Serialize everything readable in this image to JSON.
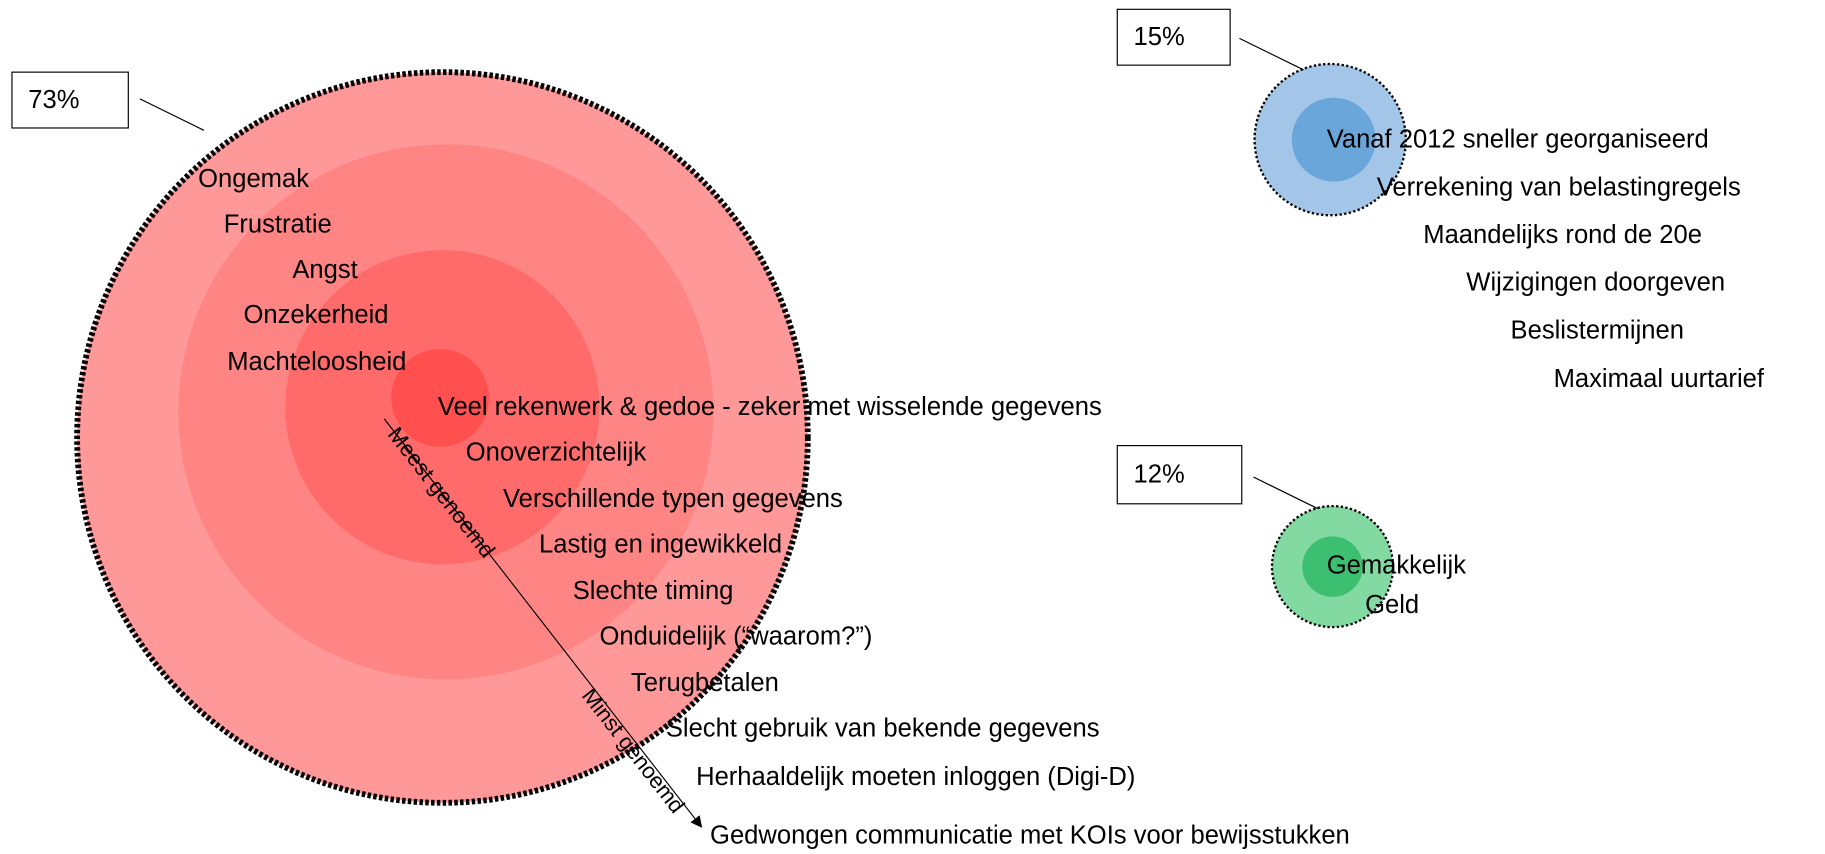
{
  "groups": [
    {
      "label": "73%",
      "items": [
        "Ongemak",
        "Frustratie",
        "Angst",
        "Onzekerheid",
        "Machteloosheid",
        "Veel rekenwerk & gedoe - zeker met wisselende gegevens",
        "Onoverzichtelijk",
        "Verschillende typen gegevens",
        "Lastig en ingewikkeld",
        "Slechte timing",
        "Onduidelijk (“waarom?”)",
        "Terugbetalen",
        "Slecht gebruik van bekende gegevens",
        "Herhaaldelijk moeten inloggen (Digi-D)",
        "Gedwongen communicatie met KOIs voor bewijsstukken"
      ]
    },
    {
      "label": "15%",
      "items": [
        "Vanaf 2012 sneller georganiseerd",
        "Verrekening van belastingregels",
        "Maandelijks rond de 20e",
        "Wijzigingen doorgeven",
        "Beslistermijnen",
        "Maximaal uurtarief"
      ]
    },
    {
      "label": "12%",
      "items": [
        "Gemakkelijk",
        "Geld"
      ]
    }
  ],
  "arrow": {
    "start_label": "Meest genoemd",
    "end_label": "Minst genoemd"
  }
}
